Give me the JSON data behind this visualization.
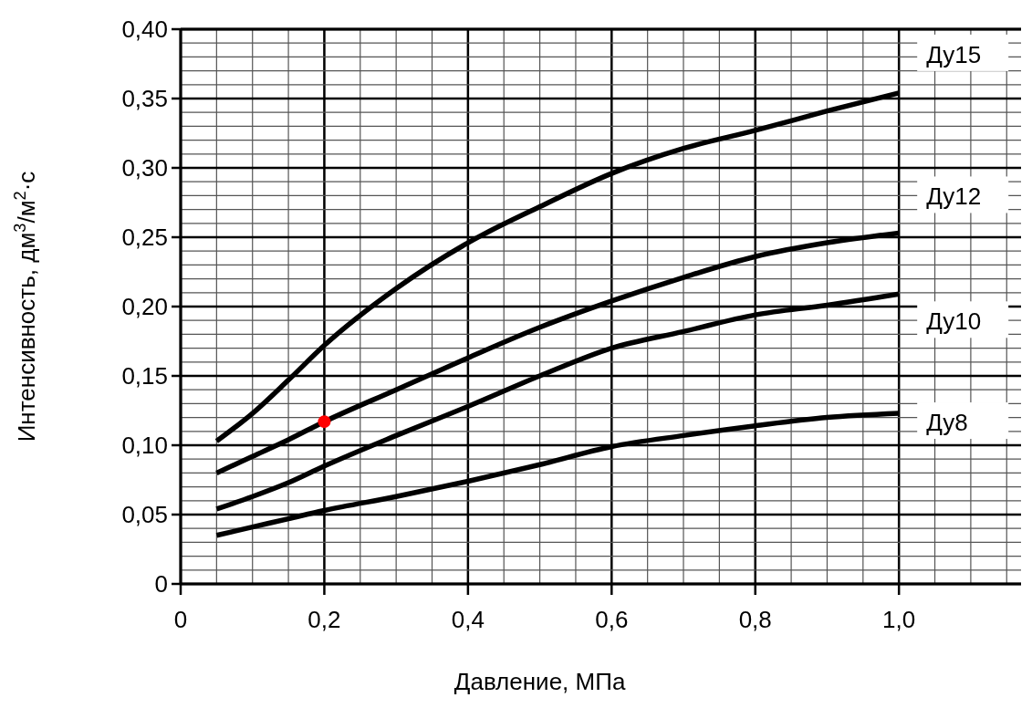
{
  "chart_data": {
    "type": "line",
    "xlabel": "Давление, МПа",
    "ylabel": "Интенсивность, дм$^{3}$/м$^{2}$·с",
    "xlim": [
      0,
      1.17
    ],
    "ylim": [
      0,
      0.4
    ],
    "xticks": [
      {
        "value": 0,
        "label": "0"
      },
      {
        "value": 0.2,
        "label": "0,2"
      },
      {
        "value": 0.4,
        "label": "0,4"
      },
      {
        "value": 0.6,
        "label": "0,6"
      },
      {
        "value": 0.8,
        "label": "0,8"
      },
      {
        "value": 1,
        "label": "1,0"
      }
    ],
    "yticks": [
      {
        "value": 0,
        "label": "0"
      },
      {
        "value": 0.05,
        "label": "0,05"
      },
      {
        "value": 0.1,
        "label": "0,10"
      },
      {
        "value": 0.15,
        "label": "0,15"
      },
      {
        "value": 0.2,
        "label": "0,20"
      },
      {
        "value": 0.25,
        "label": "0,25"
      },
      {
        "value": 0.3,
        "label": "0,30"
      },
      {
        "value": 0.35,
        "label": "0,35"
      },
      {
        "value": 0.4,
        "label": "0,40"
      }
    ],
    "grid": true,
    "marker": "none",
    "line_style": "solid",
    "series": [
      {
        "name": "Ду15",
        "color": "#000000",
        "x": [
          0.05,
          0.1,
          0.15,
          0.2,
          0.3,
          0.4,
          0.5,
          0.6,
          0.7,
          0.8,
          0.9,
          1.0
        ],
        "values": [
          0.103,
          0.123,
          0.147,
          0.172,
          0.213,
          0.246,
          0.272,
          0.296,
          0.314,
          0.327,
          0.341,
          0.354
        ]
      },
      {
        "name": "Ду12",
        "color": "#000000",
        "x": [
          0.05,
          0.1,
          0.15,
          0.2,
          0.3,
          0.4,
          0.5,
          0.6,
          0.7,
          0.8,
          0.9,
          1.0
        ],
        "values": [
          0.08,
          0.092,
          0.104,
          0.117,
          0.14,
          0.163,
          0.185,
          0.204,
          0.221,
          0.236,
          0.246,
          0.253
        ]
      },
      {
        "name": "Ду10",
        "color": "#000000",
        "x": [
          0.05,
          0.1,
          0.15,
          0.2,
          0.3,
          0.4,
          0.5,
          0.6,
          0.7,
          0.8,
          0.9,
          1.0
        ],
        "values": [
          0.054,
          0.063,
          0.073,
          0.085,
          0.107,
          0.128,
          0.15,
          0.17,
          0.182,
          0.194,
          0.201,
          0.209
        ]
      },
      {
        "name": "Ду8",
        "color": "#000000",
        "x": [
          0.05,
          0.1,
          0.15,
          0.2,
          0.3,
          0.4,
          0.5,
          0.6,
          0.7,
          0.8,
          0.9,
          1.0
        ],
        "values": [
          0.035,
          0.041,
          0.047,
          0.053,
          0.063,
          0.074,
          0.086,
          0.099,
          0.107,
          0.114,
          0.12,
          0.123
        ]
      },
      {
        "type": "scatter",
        "color": "#ff0000",
        "marker": "circle",
        "x": [
          0.2
        ],
        "values": [
          0.117
        ]
      }
    ]
  }
}
